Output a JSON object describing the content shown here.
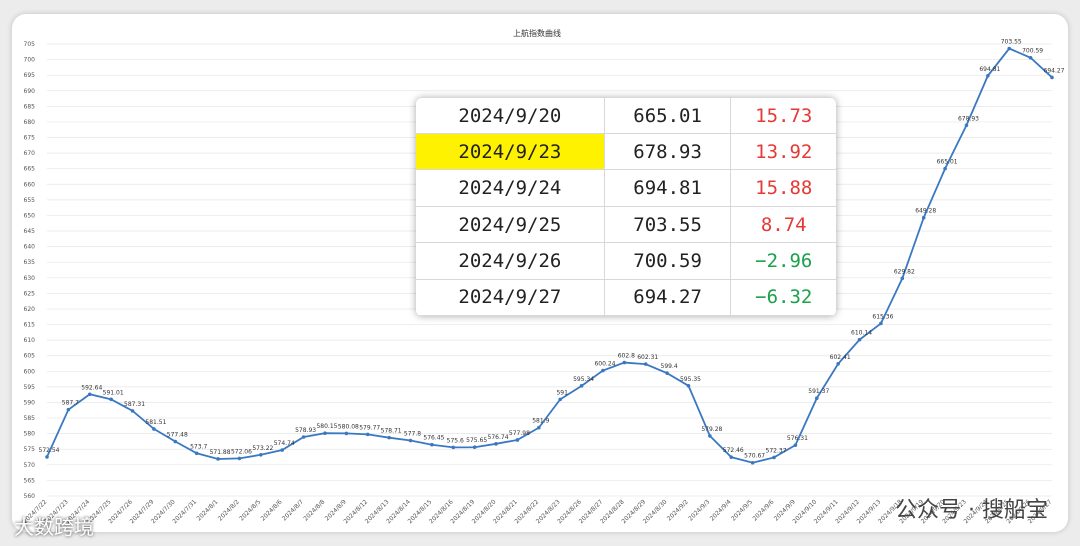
{
  "chart_data": {
    "type": "line",
    "title": "上航指数曲线",
    "ylim": [
      560,
      705
    ],
    "yticks": [
      560,
      565,
      570,
      575,
      580,
      585,
      590,
      595,
      600,
      605,
      610,
      615,
      620,
      625,
      630,
      635,
      640,
      645,
      650,
      655,
      660,
      665,
      670,
      675,
      680,
      685,
      690,
      695,
      700,
      705
    ],
    "series": [
      {
        "color": "#3a78c2",
        "values": [
          572.54,
          587.7,
          592.64,
          591.01,
          587.31,
          581.51,
          577.48,
          573.7,
          571.88,
          572.06,
          573.22,
          574.74,
          578.93,
          580.15,
          580.08,
          579.77,
          578.71,
          577.8,
          576.45,
          575.6,
          575.65,
          576.74,
          577.98,
          581.9,
          591,
          595.34,
          600.24,
          602.8,
          602.31,
          599.4,
          595.35,
          579.28,
          572.46,
          570.67,
          572.37,
          576.31,
          591.37,
          602.41,
          610.14,
          615.36,
          629.82,
          649.28,
          665.01,
          678.93,
          694.81,
          703.55,
          700.59,
          694.27
        ],
        "labels": [
          "572.54",
          "587.7",
          "592.64",
          "591.01",
          "587.31",
          "581.51",
          "577.48",
          "573.7",
          "571.88",
          "572.06",
          "573.22",
          "574.74",
          "578.93",
          "580.15",
          "580.08",
          "579.77",
          "578.71",
          "577.8",
          "576.45",
          "575.6",
          "575.65",
          "576.74",
          "577.98",
          "581.9",
          "591",
          "595.34",
          "600.24",
          "602.8",
          "602.31",
          "599.4",
          "595.35",
          "579.28",
          "572.46",
          "570.67",
          "572.37",
          "576.31",
          "591.37",
          "602.41",
          "610.14",
          "615.36",
          "629.82",
          "649.28",
          "665.01",
          "678.93",
          "694.81",
          "703.55",
          "700.59",
          "694.27"
        ]
      }
    ],
    "x": [
      "2024/7/22",
      "2024/7/23",
      "2024/7/24",
      "2024/7/25",
      "2024/7/26",
      "2024/7/29",
      "2024/7/30",
      "2024/7/31",
      "2024/8/1",
      "2024/8/2",
      "2024/8/5",
      "2024/8/6",
      "2024/8/7",
      "2024/8/8",
      "2024/8/9",
      "2024/8/12",
      "2024/8/13",
      "2024/8/14",
      "2024/8/15",
      "2024/8/16",
      "2024/8/19",
      "2024/8/20",
      "2024/8/21",
      "2024/8/22",
      "2024/8/23",
      "2024/8/26",
      "2024/8/27",
      "2024/8/28",
      "2024/8/29",
      "2024/8/30",
      "2024/9/2",
      "2024/9/3",
      "2024/9/4",
      "2024/9/5",
      "2024/9/6",
      "2024/9/9",
      "2024/9/10",
      "2024/9/11",
      "2024/9/12",
      "2024/9/13",
      "2024/9/18",
      "2024/9/19",
      "2024/9/20",
      "2024/9/23",
      "2024/9/24",
      "2024/9/25",
      "2024/9/26",
      "2024/9/27"
    ],
    "grid": true
  },
  "table": {
    "rows": [
      {
        "date": "2024/9/20",
        "value": "665.01",
        "change": "15.73",
        "dir": "up",
        "highlight": false
      },
      {
        "date": "2024/9/23",
        "value": "678.93",
        "change": "13.92",
        "dir": "up",
        "highlight": true
      },
      {
        "date": "2024/9/24",
        "value": "694.81",
        "change": "15.88",
        "dir": "up",
        "highlight": false
      },
      {
        "date": "2024/9/25",
        "value": "703.55",
        "change": "8.74",
        "dir": "up",
        "highlight": false
      },
      {
        "date": "2024/9/26",
        "value": "700.59",
        "change": "−2.96",
        "dir": "down",
        "highlight": false
      },
      {
        "date": "2024/9/27",
        "value": "694.27",
        "change": "−6.32",
        "dir": "down",
        "highlight": false
      }
    ]
  },
  "watermarks": {
    "left": "大数跨境",
    "right": "公众号 · 搜船宝"
  },
  "colors": {
    "line": "#3a78c2",
    "up": "#e53935",
    "down": "#1aa14a",
    "highlight": "#fff200"
  }
}
